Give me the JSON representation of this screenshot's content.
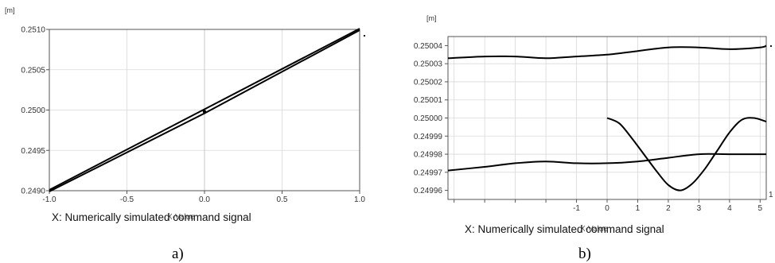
{
  "chart_data": [
    {
      "type": "line",
      "caption": "a)",
      "unit": "[m]",
      "xlabel": "X: Numerically simulated command signal",
      "xlabel_overlap": "X-Value",
      "xlim": [
        -1.0,
        1.0
      ],
      "ylim": [
        0.249,
        0.251
      ],
      "x_ticks": [
        "-1.0",
        "-0.5",
        "0.0",
        "0.5",
        "1.0"
      ],
      "y_ticks": [
        "0.2490",
        "0.2495",
        "0.2500",
        "0.2505",
        "0.2510"
      ],
      "grid": true,
      "series": [
        {
          "x": [
            -1.0,
            0.0,
            1.0
          ],
          "y": [
            0.24901,
            0.25001,
            0.25101
          ]
        },
        {
          "x": [
            -1.0,
            0.0,
            1.0
          ],
          "y": [
            0.24899,
            0.24996,
            0.25099
          ]
        }
      ],
      "points": [
        {
          "x": 0.0,
          "y": 0.24998
        }
      ]
    },
    {
      "type": "line",
      "caption": "b)",
      "unit": "[m]",
      "right_marker": "1",
      "xlabel": "X: Numerically simulated command signal",
      "xlabel_overlap": "X-Value",
      "xlim": [
        -5.2,
        5.2
      ],
      "ylim": [
        0.249955,
        0.250045
      ],
      "x_ticks": [
        "-1",
        "0",
        "1",
        "2",
        "3",
        "4",
        "5"
      ],
      "y_ticks": [
        "0.24996",
        "0.24997",
        "0.24998",
        "0.24999",
        "0.25000",
        "0.25001",
        "0.25002",
        "0.25003",
        "0.25004"
      ],
      "grid": true,
      "series": [
        {
          "x": [
            -5.2,
            -4.0,
            -3.0,
            -2.0,
            -1.0,
            0.0,
            1.0,
            2.0,
            3.0,
            4.0,
            5.0,
            5.2
          ],
          "y": [
            0.250033,
            0.250034,
            0.250034,
            0.250033,
            0.250034,
            0.250035,
            0.250037,
            0.250039,
            0.250039,
            0.250038,
            0.250039,
            0.25004
          ]
        },
        {
          "x": [
            -5.2,
            -4.0,
            -3.0,
            -2.0,
            -1.0,
            0.0,
            1.0,
            2.0,
            3.0,
            4.0,
            5.0,
            5.2
          ],
          "y": [
            0.249971,
            0.249973,
            0.249975,
            0.249976,
            0.249975,
            0.249975,
            0.249976,
            0.249978,
            0.24998,
            0.24998,
            0.24998,
            0.24998
          ]
        },
        {
          "x": [
            0.0,
            0.4,
            0.8,
            1.2,
            1.6,
            2.0,
            2.4,
            2.8,
            3.2,
            3.6,
            4.0,
            4.4,
            4.8,
            5.2
          ],
          "y": [
            0.25,
            0.249997,
            0.249989,
            0.24998,
            0.249971,
            0.249963,
            0.24996,
            0.249964,
            0.249972,
            0.249982,
            0.249992,
            0.249999,
            0.25,
            0.249998
          ]
        }
      ]
    }
  ]
}
